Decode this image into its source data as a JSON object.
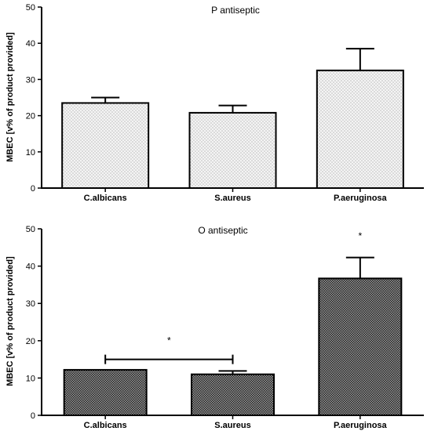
{
  "chart_data": [
    {
      "type": "bar",
      "title": "P antiseptic",
      "ylabel": "MBEC [v% of product provided]",
      "xlabel": "",
      "categories": [
        "C.albicans",
        "S.aureus",
        "P.aeruginosa"
      ],
      "values": [
        23.5,
        20.8,
        32.5
      ],
      "error": [
        1.5,
        2.0,
        6.0
      ],
      "ylim": [
        0,
        50
      ],
      "yticks": [
        0,
        10,
        20,
        30,
        40,
        50
      ],
      "grid": false,
      "pattern": "fine-dots",
      "annotations": []
    },
    {
      "type": "bar",
      "title": "O antiseptic",
      "ylabel": "MBEC [v% of product provided]",
      "xlabel": "",
      "categories": [
        "C.albicans",
        "S.aureus",
        "P.aeruginosa"
      ],
      "values": [
        12.2,
        11.0,
        36.7
      ],
      "error": [
        0,
        0.9,
        5.6
      ],
      "ylim": [
        0,
        50
      ],
      "yticks": [
        0,
        10,
        20,
        30,
        40,
        50
      ],
      "grid": false,
      "pattern": "dense-crosshatch",
      "annotations": [
        {
          "text": "*",
          "category": "P.aeruginosa",
          "y": 48.5
        },
        {
          "text": "*",
          "bracket": [
            "C.albicans",
            "S.aureus"
          ],
          "y": 15,
          "label_y": 20.5
        }
      ]
    }
  ]
}
